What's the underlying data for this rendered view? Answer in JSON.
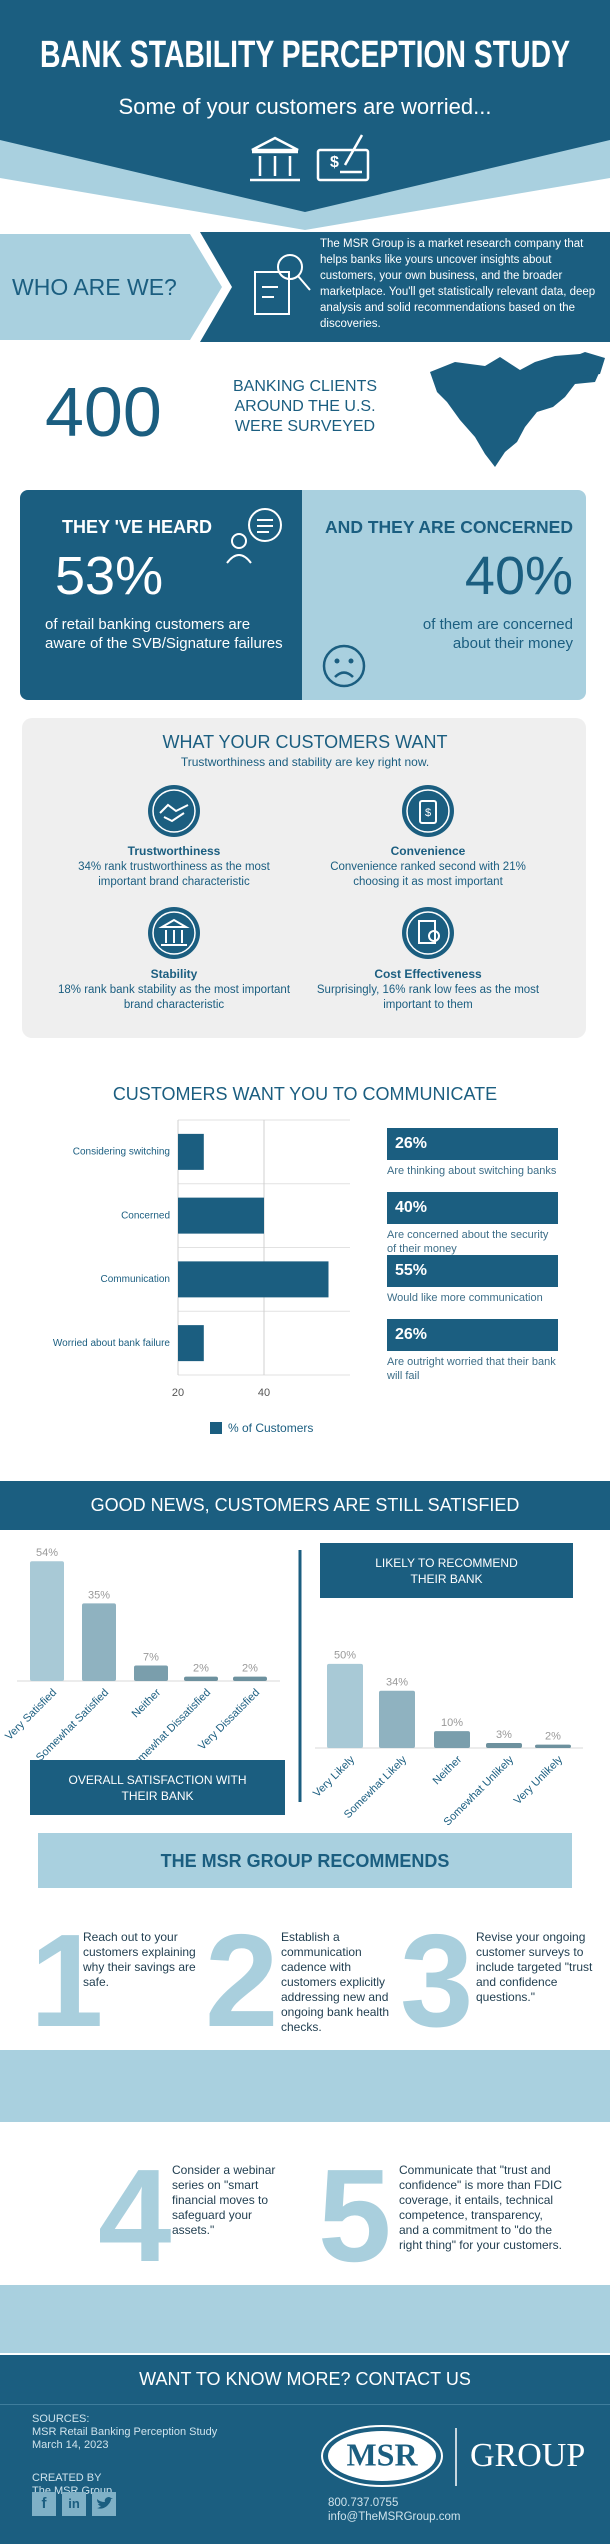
{
  "header": {
    "title": "BANK STABILITY PERCEPTION STUDY",
    "subtitle": "Some of your customers are worried..."
  },
  "about": {
    "heading": "WHO ARE WE?",
    "text": "The MSR Group is a market research company that helps banks like yours uncover insights about customers, your own business, and the broader marketplace. You'll get statistically relevant data, deep analysis and solid recommendations based on the discoveries."
  },
  "survey": {
    "count": "400",
    "lines": [
      "BANKING CLIENTS",
      "AROUND THE U.S.",
      "WERE SURVEYED"
    ]
  },
  "stats": [
    {
      "heading": "THEY 'VE HEARD",
      "value": "53%",
      "text": "of retail banking customers are aware of the SVB/Signature failures"
    },
    {
      "heading": "AND THEY ARE CONCERNED",
      "value": "40%",
      "text": "of them are concerned about their money"
    }
  ],
  "wants": {
    "title": "WHAT YOUR CUSTOMERS WANT",
    "subtitle": "Trustworthiness and stability are key right now.",
    "items": [
      {
        "title": "Trustworthiness",
        "text": "34% rank trustworthiness as the most important brand characteristic"
      },
      {
        "title": "Convenience",
        "text": "Convenience ranked second with 21% choosing it as most important"
      },
      {
        "title": "Stability",
        "text": "18% rank bank stability as the most important brand characteristic"
      },
      {
        "title": "Cost Effectiveness",
        "text": "Surprisingly, 16% rank low fees as the most important to them"
      }
    ]
  },
  "news": {
    "title": "GOOD NEWS, CUSTOMERS ARE STILL SATISFIED"
  },
  "chart_data": [
    {
      "type": "bar",
      "orientation": "horizontal",
      "title": "CUSTOMERS WANT YOU TO COMMUNICATE",
      "categories": [
        "Considering switching",
        "Concerned",
        "Communication",
        "Worried about bank failure"
      ],
      "series": [
        {
          "name": "% of Customers",
          "color": "#1b5e80",
          "values": [
            26,
            40,
            55,
            26
          ],
          "value_labels": [
            "26%",
            "40%",
            "55%",
            "26%"
          ]
        }
      ],
      "annotations": [
        "Are thinking about switching banks",
        "Are concerned about the security of their money",
        "Would like more communication",
        "Are outright worried that their bank will fail"
      ],
      "xlim": [
        20,
        60
      ],
      "xticks": [
        20,
        40
      ],
      "grid": true
    },
    {
      "type": "bar",
      "title": "OVERALL SATISFACTION WITH THEIR BANK",
      "categories": [
        "Very Satisfied",
        "Somewhat Satisfied",
        "Neither",
        "Somewhat Dissatisfied",
        "Very Dissatisfied"
      ],
      "values": [
        54,
        35,
        7,
        2,
        2
      ],
      "value_labels": [
        "54%",
        "35%",
        "7%",
        "2%",
        "2%"
      ],
      "colors": [
        "#a8c9d6",
        "#8fb2c0",
        "#7a9eac",
        "#6d919e",
        "#6d919e"
      ],
      "ylim": [
        0,
        60
      ]
    },
    {
      "type": "bar",
      "title": "LIKELY TO RECOMMEND THEIR BANK",
      "categories": [
        "Very Likely",
        "Somewhat Likely",
        "Neither",
        "Somewhat Unlikely",
        "Very Unlikely"
      ],
      "values": [
        50,
        34,
        10,
        3,
        2
      ],
      "value_labels": [
        "50%",
        "34%",
        "10%",
        "3%",
        "2%"
      ],
      "colors": [
        "#a8c9d6",
        "#8fb2c0",
        "#7a9eac",
        "#6d919e",
        "#6d919e"
      ],
      "ylim": [
        0,
        60
      ]
    }
  ],
  "recommends": {
    "title": "THE MSR GROUP RECOMMENDS",
    "steps": [
      {
        "number": "1",
        "text": "Reach out to your customers explaining why their savings are safe."
      },
      {
        "number": "2",
        "text": "Establish a communication cadence with customers explicitly addressing new and ongoing bank health checks."
      },
      {
        "number": "3",
        "text": "Revise your ongoing customer surveys to include targeted \"trust and confidence questions.\""
      },
      {
        "number": "4",
        "text": "Consider a webinar series on \"smart financial moves to safeguard your assets.\""
      },
      {
        "number": "5",
        "text": "Communicate that \"trust and confidence\" is more than FDIC coverage, it entails, technical competence, transparency, and a commitment to \"do the right thing\" for your customers."
      }
    ]
  },
  "footer": {
    "cta": "WANT TO KNOW MORE?  CONTACT US",
    "sources_label": "SOURCES:",
    "sources": [
      "MSR Retail Banking Perception Study",
      "March 14, 2023"
    ],
    "created_label": "CREATED BY",
    "created_by": "The MSR Group",
    "social": [
      "f",
      "in"
    ],
    "logo": "MSR",
    "logo_word": "GROUP",
    "phone": "800.737.0755",
    "email": "info@TheMSRGroup.com"
  }
}
